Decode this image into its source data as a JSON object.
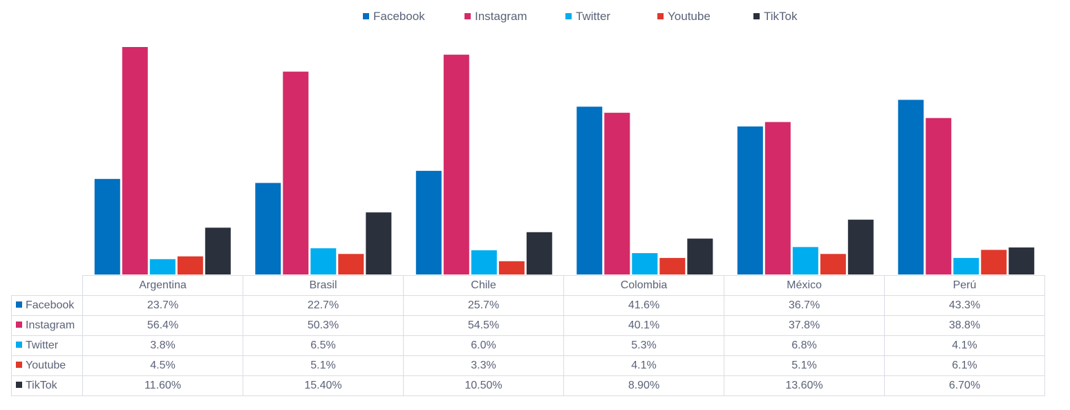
{
  "chart_data": {
    "type": "bar",
    "title": "",
    "xlabel": "",
    "ylabel": "",
    "ylim": [
      0,
      60
    ],
    "grid": false,
    "legend_position": "top",
    "categories": [
      "Argentina",
      "Brasil",
      "Chile",
      "Colombia",
      "México",
      "Perú"
    ],
    "series": [
      {
        "name": "Facebook",
        "color": "#0070c0",
        "values": [
          23.7,
          22.7,
          25.7,
          41.6,
          36.7,
          43.3
        ],
        "labels": [
          "23.7%",
          "22.7%",
          "25.7%",
          "41.6%",
          "36.7%",
          "43.3%"
        ]
      },
      {
        "name": "Instagram",
        "color": "#d42a67",
        "values": [
          56.4,
          50.3,
          54.5,
          40.1,
          37.8,
          38.8
        ],
        "labels": [
          "56.4%",
          "50.3%",
          "54.5%",
          "40.1%",
          "37.8%",
          "38.8%"
        ]
      },
      {
        "name": "Twitter",
        "color": "#00adef",
        "values": [
          3.8,
          6.5,
          6.0,
          5.3,
          6.8,
          4.1
        ],
        "labels": [
          "3.8%",
          "6.5%",
          "6.0%",
          "5.3%",
          "6.8%",
          "4.1%"
        ]
      },
      {
        "name": "Youtube",
        "color": "#e0382b",
        "values": [
          4.5,
          5.1,
          3.3,
          4.1,
          5.1,
          6.1
        ],
        "labels": [
          "4.5%",
          "5.1%",
          "3.3%",
          "4.1%",
          "5.1%",
          "6.1%"
        ]
      },
      {
        "name": "TikTok",
        "color": "#2b303d",
        "values": [
          11.6,
          15.4,
          10.5,
          8.9,
          13.6,
          6.7
        ],
        "labels": [
          "11.60%",
          "15.40%",
          "10.50%",
          "8.90%",
          "13.60%",
          "6.70%"
        ]
      }
    ]
  }
}
